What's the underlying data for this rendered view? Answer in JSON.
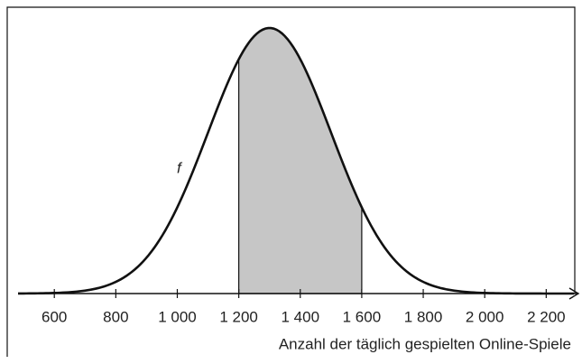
{
  "chart_data": {
    "type": "normal-density",
    "curve": {
      "mean": 1300,
      "sd": 200
    },
    "shaded": [
      1200,
      1600
    ],
    "curve_label": "f",
    "x_label": "Anzahl der täglich gespielten Online-Spiele",
    "xlim": [
      482,
      2290
    ],
    "xticks": [
      600,
      800,
      {
        "value": 1000,
        "label": "1 000"
      },
      {
        "value": 1200,
        "label": "1 200"
      },
      {
        "value": 1400,
        "label": "1 400"
      },
      {
        "value": 1600,
        "label": "1 600"
      },
      {
        "value": 1800,
        "label": "1 800"
      },
      {
        "value": 2000,
        "label": "2 000"
      },
      {
        "value": 2200,
        "label": "2 200"
      }
    ],
    "shade_color": "#c6c6c6"
  }
}
